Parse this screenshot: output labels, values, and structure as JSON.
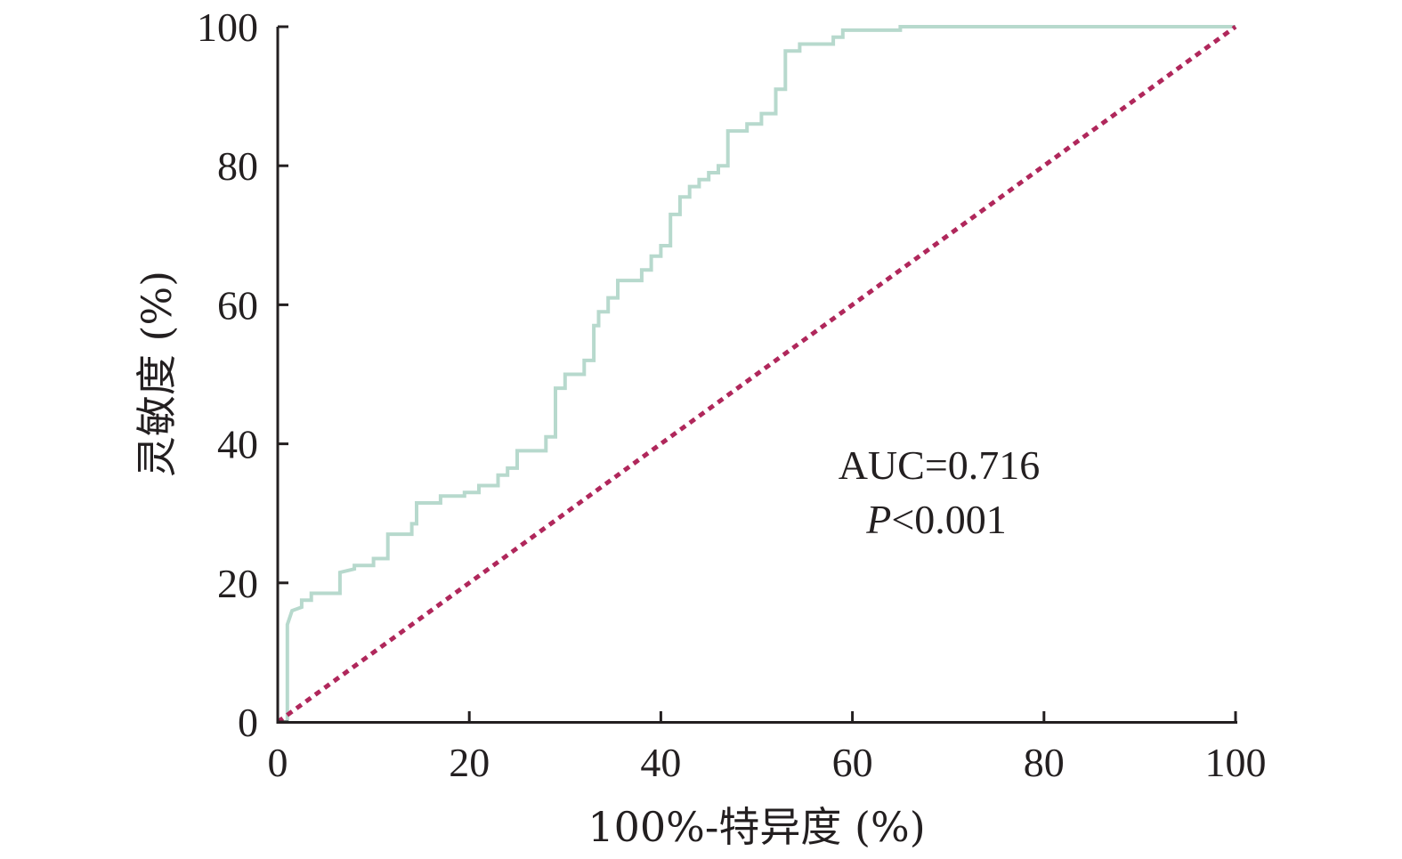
{
  "chart_data": {
    "type": "line",
    "title": "",
    "xlabel": "100%-特异度 (%)",
    "ylabel": "灵敏度 (%)",
    "xlim": [
      0,
      100
    ],
    "ylim": [
      0,
      100
    ],
    "xticks": [
      "0",
      "20",
      "40",
      "60",
      "80",
      "100"
    ],
    "yticks": [
      "0",
      "20",
      "40",
      "60",
      "80",
      "100"
    ],
    "grid": false,
    "legend": "none",
    "annotations": [
      {
        "italic": "",
        "text": "AUC=0.716"
      },
      {
        "italic": "P",
        "text": "<0.001"
      }
    ],
    "series": [
      {
        "color": "#b7d9cd",
        "style": "solid",
        "x": [
          0,
          1,
          1,
          1.5,
          2.5,
          2.5,
          3.5,
          3.5,
          6.5,
          6.5,
          8,
          8,
          10,
          10,
          11.5,
          11.5,
          14,
          14,
          14.5,
          14.5,
          17,
          17,
          19.5,
          19.5,
          21,
          21,
          23,
          23,
          24,
          24,
          25,
          25,
          28,
          28,
          29,
          29,
          30,
          30,
          32,
          32,
          33,
          33,
          33.5,
          33.5,
          34.5,
          34.5,
          35.5,
          35.5,
          38,
          38,
          39,
          39,
          40,
          40,
          41,
          41,
          42,
          42,
          43,
          43,
          44,
          44,
          45,
          45,
          46,
          46,
          47,
          47,
          49,
          49,
          50.5,
          50.5,
          52,
          52,
          53,
          53,
          54.5,
          54.5,
          58,
          58,
          59,
          59,
          65,
          65,
          100
        ],
        "y": [
          0,
          0,
          14,
          16,
          16.5,
          17.5,
          17.5,
          18.5,
          18.5,
          21.5,
          22,
          22.5,
          22.5,
          23.5,
          23.5,
          27,
          27,
          28.5,
          28.5,
          31.5,
          31.5,
          32.5,
          32.5,
          33,
          33,
          34,
          34,
          35.5,
          35.5,
          36.5,
          36.5,
          39,
          39,
          41,
          41,
          48,
          48,
          50,
          50,
          52,
          52,
          57,
          57,
          59,
          59,
          61,
          61,
          63.5,
          63.5,
          65,
          65,
          67,
          67,
          68.5,
          68.5,
          73,
          73,
          75.5,
          75.5,
          77,
          77,
          78,
          78,
          79,
          79,
          80,
          80,
          85,
          85,
          86,
          86,
          87.5,
          87.5,
          91,
          91,
          96.5,
          96.5,
          97.5,
          97.5,
          98.5,
          98.5,
          99.5,
          99.5,
          100,
          100
        ]
      },
      {
        "color": "#b0275b",
        "style": "dashed",
        "x": [
          0,
          100
        ],
        "y": [
          0,
          100
        ]
      }
    ]
  }
}
